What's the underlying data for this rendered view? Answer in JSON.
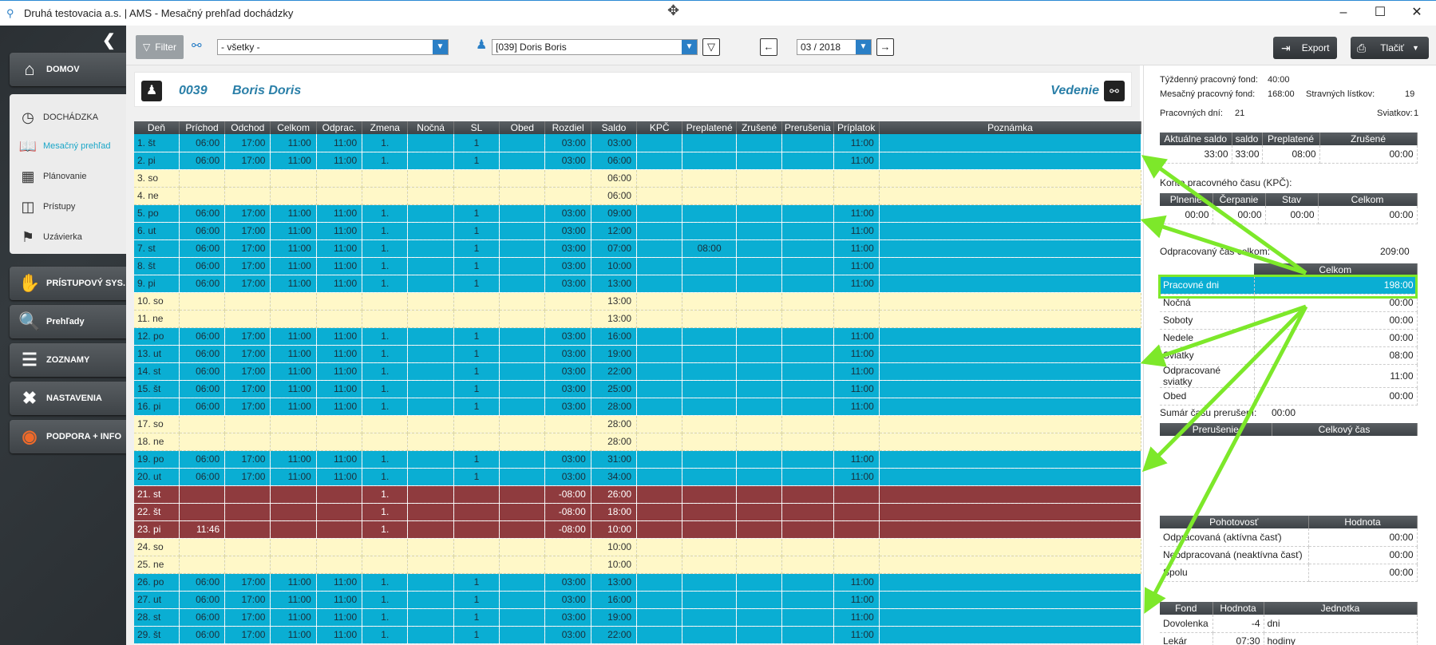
{
  "window": {
    "title": "Druhá testovacia a.s. | AMS - Mesačný prehľad dochádzky",
    "minimize": "–",
    "maximize": "☐",
    "close": "✕"
  },
  "sidebar": {
    "main_items": [
      {
        "label": "DOMOV",
        "icon": "home-icon"
      },
      {
        "label": "PRÍSTUPOVÝ SYS.",
        "icon": "handshake-icon"
      },
      {
        "label": "Prehľady",
        "icon": "report-icon"
      },
      {
        "label": "ZOZNAMY",
        "icon": "list-icon"
      },
      {
        "label": "NASTAVENIA",
        "icon": "tools-icon"
      },
      {
        "label": "PODPORA + INFO",
        "icon": "lifebuoy-icon"
      }
    ],
    "sub_items": [
      {
        "label": "DOCHÁDZKA",
        "icon": "clock-icon"
      },
      {
        "label": "Mesačný prehľad",
        "icon": "book-icon"
      },
      {
        "label": "Plánovanie",
        "icon": "calendar-icon"
      },
      {
        "label": "Prístupy",
        "icon": "door-icon"
      },
      {
        "label": "Uzávierka",
        "icon": "flag-icon"
      }
    ]
  },
  "toolbar": {
    "filter_label": "Filter",
    "group_value": "- všetky -",
    "employee_value": "[039] Doris Boris",
    "period_value": "03 / 2018",
    "export_label": "Export",
    "print_label": "Tlačiť"
  },
  "employee": {
    "number": "0039",
    "name": "Boris Doris",
    "department": "Vedenie"
  },
  "grid": {
    "columns": [
      "Deň",
      "Príchod",
      "Odchod",
      "Celkom",
      "Odprac.",
      "Zmena",
      "Nočná",
      "SL",
      "Obed",
      "Rozdiel",
      "Saldo",
      "KPČ",
      "Preplatené",
      "Zrušené",
      "Prerušenia",
      "Príplatok",
      "Poznámka"
    ],
    "rows": [
      {
        "type": "work",
        "c": [
          "1. št",
          "06:00",
          "17:00",
          "11:00",
          "11:00",
          "1.",
          "",
          "1",
          "",
          "03:00",
          "03:00",
          "",
          "",
          "",
          "",
          "11:00",
          ""
        ]
      },
      {
        "type": "work",
        "c": [
          "2. pi",
          "06:00",
          "17:00",
          "11:00",
          "11:00",
          "1.",
          "",
          "1",
          "",
          "03:00",
          "06:00",
          "",
          "",
          "",
          "",
          "11:00",
          ""
        ]
      },
      {
        "type": "weekend",
        "c": [
          "3. so",
          "",
          "",
          "",
          "",
          "",
          "",
          "",
          "",
          "",
          "06:00",
          "",
          "",
          "",
          "",
          "",
          ""
        ]
      },
      {
        "type": "weekend",
        "c": [
          "4. ne",
          "",
          "",
          "",
          "",
          "",
          "",
          "",
          "",
          "",
          "06:00",
          "",
          "",
          "",
          "",
          "",
          ""
        ]
      },
      {
        "type": "work",
        "c": [
          "5. po",
          "06:00",
          "17:00",
          "11:00",
          "11:00",
          "1.",
          "",
          "1",
          "",
          "03:00",
          "09:00",
          "",
          "",
          "",
          "",
          "11:00",
          ""
        ]
      },
      {
        "type": "work",
        "c": [
          "6. ut",
          "06:00",
          "17:00",
          "11:00",
          "11:00",
          "1.",
          "",
          "1",
          "",
          "03:00",
          "12:00",
          "",
          "",
          "",
          "",
          "11:00",
          ""
        ]
      },
      {
        "type": "work",
        "c": [
          "7. st",
          "06:00",
          "17:00",
          "11:00",
          "11:00",
          "1.",
          "",
          "1",
          "",
          "03:00",
          "07:00",
          "",
          "08:00",
          "",
          "",
          "11:00",
          ""
        ]
      },
      {
        "type": "work",
        "c": [
          "8. št",
          "06:00",
          "17:00",
          "11:00",
          "11:00",
          "1.",
          "",
          "1",
          "",
          "03:00",
          "10:00",
          "",
          "",
          "",
          "",
          "11:00",
          ""
        ]
      },
      {
        "type": "work",
        "c": [
          "9. pi",
          "06:00",
          "17:00",
          "11:00",
          "11:00",
          "1.",
          "",
          "1",
          "",
          "03:00",
          "13:00",
          "",
          "",
          "",
          "",
          "11:00",
          ""
        ]
      },
      {
        "type": "weekend",
        "c": [
          "10. so",
          "",
          "",
          "",
          "",
          "",
          "",
          "",
          "",
          "",
          "13:00",
          "",
          "",
          "",
          "",
          "",
          ""
        ]
      },
      {
        "type": "weekend",
        "c": [
          "11. ne",
          "",
          "",
          "",
          "",
          "",
          "",
          "",
          "",
          "",
          "13:00",
          "",
          "",
          "",
          "",
          "",
          ""
        ]
      },
      {
        "type": "work",
        "c": [
          "12. po",
          "06:00",
          "17:00",
          "11:00",
          "11:00",
          "1.",
          "",
          "1",
          "",
          "03:00",
          "16:00",
          "",
          "",
          "",
          "",
          "11:00",
          ""
        ]
      },
      {
        "type": "work",
        "c": [
          "13. ut",
          "06:00",
          "17:00",
          "11:00",
          "11:00",
          "1.",
          "",
          "1",
          "",
          "03:00",
          "19:00",
          "",
          "",
          "",
          "",
          "11:00",
          ""
        ]
      },
      {
        "type": "work",
        "c": [
          "14. st",
          "06:00",
          "17:00",
          "11:00",
          "11:00",
          "1.",
          "",
          "1",
          "",
          "03:00",
          "22:00",
          "",
          "",
          "",
          "",
          "11:00",
          ""
        ]
      },
      {
        "type": "work",
        "c": [
          "15. št",
          "06:00",
          "17:00",
          "11:00",
          "11:00",
          "1.",
          "",
          "1",
          "",
          "03:00",
          "25:00",
          "",
          "",
          "",
          "",
          "11:00",
          ""
        ]
      },
      {
        "type": "work",
        "c": [
          "16. pi",
          "06:00",
          "17:00",
          "11:00",
          "11:00",
          "1.",
          "",
          "1",
          "",
          "03:00",
          "28:00",
          "",
          "",
          "",
          "",
          "11:00",
          ""
        ]
      },
      {
        "type": "weekend",
        "c": [
          "17. so",
          "",
          "",
          "",
          "",
          "",
          "",
          "",
          "",
          "",
          "28:00",
          "",
          "",
          "",
          "",
          "",
          ""
        ]
      },
      {
        "type": "weekend",
        "c": [
          "18. ne",
          "",
          "",
          "",
          "",
          "",
          "",
          "",
          "",
          "",
          "28:00",
          "",
          "",
          "",
          "",
          "",
          ""
        ]
      },
      {
        "type": "work",
        "c": [
          "19. po",
          "06:00",
          "17:00",
          "11:00",
          "11:00",
          "1.",
          "",
          "1",
          "",
          "03:00",
          "31:00",
          "",
          "",
          "",
          "",
          "11:00",
          ""
        ]
      },
      {
        "type": "work",
        "c": [
          "20. ut",
          "06:00",
          "17:00",
          "11:00",
          "11:00",
          "1.",
          "",
          "1",
          "",
          "03:00",
          "34:00",
          "",
          "",
          "",
          "",
          "11:00",
          ""
        ]
      },
      {
        "type": "absent",
        "c": [
          "21. st",
          "",
          "",
          "",
          "",
          "1.",
          "",
          "",
          "",
          "-08:00",
          "26:00",
          "",
          "",
          "",
          "",
          "",
          ""
        ]
      },
      {
        "type": "absent",
        "c": [
          "22. št",
          "",
          "",
          "",
          "",
          "1.",
          "",
          "",
          "",
          "-08:00",
          "18:00",
          "",
          "",
          "",
          "",
          "",
          ""
        ]
      },
      {
        "type": "absent",
        "c": [
          "23. pi",
          "11:46",
          "",
          "",
          "",
          "1.",
          "",
          "",
          "",
          "-08:00",
          "10:00",
          "",
          "",
          "",
          "",
          "",
          ""
        ]
      },
      {
        "type": "weekend",
        "c": [
          "24. so",
          "",
          "",
          "",
          "",
          "",
          "",
          "",
          "",
          "",
          "10:00",
          "",
          "",
          "",
          "",
          "",
          ""
        ]
      },
      {
        "type": "weekend",
        "c": [
          "25. ne",
          "",
          "",
          "",
          "",
          "",
          "",
          "",
          "",
          "",
          "10:00",
          "",
          "",
          "",
          "",
          "",
          ""
        ]
      },
      {
        "type": "work",
        "c": [
          "26. po",
          "06:00",
          "17:00",
          "11:00",
          "11:00",
          "1.",
          "",
          "1",
          "",
          "03:00",
          "13:00",
          "",
          "",
          "",
          "",
          "11:00",
          ""
        ]
      },
      {
        "type": "work",
        "c": [
          "27. ut",
          "06:00",
          "17:00",
          "11:00",
          "11:00",
          "1.",
          "",
          "1",
          "",
          "03:00",
          "16:00",
          "",
          "",
          "",
          "",
          "11:00",
          ""
        ]
      },
      {
        "type": "work",
        "c": [
          "28. st",
          "06:00",
          "17:00",
          "11:00",
          "11:00",
          "1.",
          "",
          "1",
          "",
          "03:00",
          "19:00",
          "",
          "",
          "",
          "",
          "11:00",
          ""
        ]
      },
      {
        "type": "work",
        "c": [
          "29. št",
          "06:00",
          "17:00",
          "11:00",
          "11:00",
          "1.",
          "",
          "1",
          "",
          "03:00",
          "22:00",
          "",
          "",
          "",
          "",
          "11:00",
          ""
        ]
      }
    ]
  },
  "summary": {
    "weekly_fund_label": "Týždenný pracovný fond:",
    "weekly_fund": "40:00",
    "monthly_fund_label": "Mesačný pracovný fond:",
    "monthly_fund": "168:00",
    "meal_tickets_label": "Stravných lístkov:",
    "meal_tickets": "19",
    "work_days_label": "Pracovných dní:",
    "work_days": "21",
    "holidays_label": "Sviatkov:",
    "holidays": "1",
    "saldo_table": {
      "headers": [
        "Aktuálne saldo",
        "saldo",
        "Preplatené",
        "Zrušené"
      ],
      "row": [
        "33:00",
        "33:00",
        "08:00",
        "00:00"
      ]
    },
    "kpc_title": "Konto pracovného času (KPČ):",
    "kpc_table": {
      "headers": [
        "Plnenie",
        "Čerpanie",
        "Stav",
        "Celkom"
      ],
      "row": [
        "00:00",
        "00:00",
        "00:00",
        "00:00"
      ]
    },
    "worked_total_label": "Odpracovaný čas celkom:",
    "worked_total": "209:00",
    "worked_table": {
      "header": "Celkom",
      "rows": [
        {
          "label": "Pracovné dni",
          "value": "198:00"
        },
        {
          "label": "Nočná",
          "value": "00:00"
        },
        {
          "label": "Soboty",
          "value": "00:00"
        },
        {
          "label": "Nedele",
          "value": "00:00"
        },
        {
          "label": "Sviatky",
          "value": "08:00"
        },
        {
          "label": "Odpracované sviatky",
          "value": "11:00"
        },
        {
          "label": "Obed",
          "value": "00:00"
        }
      ]
    },
    "break_sum_label": "Sumár času prerušení:",
    "break_sum": "00:00",
    "break_table": {
      "headers": [
        "Prerušenie",
        "Celkový čas"
      ]
    },
    "standby_table": {
      "headers": [
        "Pohotovosť",
        "Hodnota"
      ],
      "rows": [
        {
          "label": "Odpracovaná (aktívna časť)",
          "value": "00:00"
        },
        {
          "label": "Neodpracovaná (neaktívna časť)",
          "value": "00:00"
        },
        {
          "label": "Spolu",
          "value": "00:00"
        }
      ]
    },
    "fund_table": {
      "headers": [
        "Fond",
        "Hodnota",
        "Jednotka"
      ],
      "rows": [
        {
          "label": "Dovolenka",
          "value": "-4",
          "unit": "dni"
        },
        {
          "label": "Lekár",
          "value": "07:30",
          "unit": "hodiny"
        }
      ]
    }
  },
  "colors": {
    "work_row": "#0aaed3",
    "weekend_row": "#fff8c8",
    "absent_row": "#8f3b3e",
    "arrow": "#7de82a",
    "highlight_border": "#7de82a"
  }
}
